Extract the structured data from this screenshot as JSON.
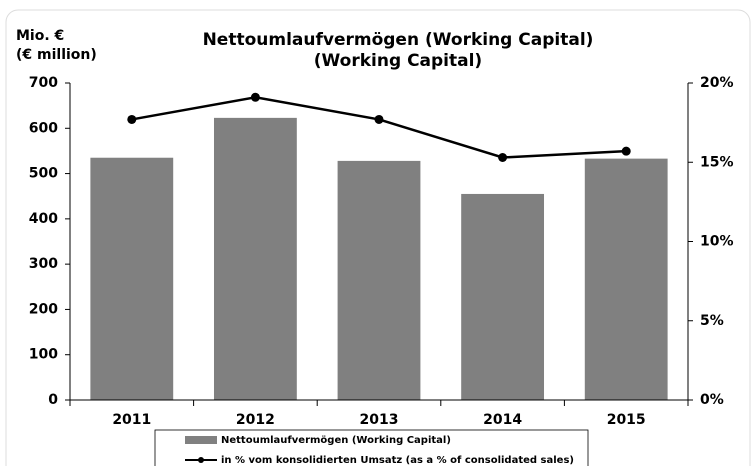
{
  "chart_data": {
    "type": "bar_line",
    "title": "Nettoumlaufvermögen (Working Capital)",
    "subtitle": "(Working Capital)",
    "ylabel": [
      "Mio. €",
      "(€ million)"
    ],
    "categories": [
      "2011",
      "2012",
      "2013",
      "2014",
      "2015"
    ],
    "series": [
      {
        "name": "Nettoumlaufvermögen (Working Capital)",
        "color": "#808080",
        "kind": "bar",
        "values": [
          535,
          623,
          528,
          455,
          533
        ]
      },
      {
        "name": "in % vom konsolidierten Umsatz (as a % of consolidated sales)",
        "color": "#000000",
        "kind": "line",
        "axis": "y2",
        "values": [
          17.7,
          19.1,
          17.7,
          15.3,
          15.7
        ]
      }
    ],
    "ylim": [
      0,
      700
    ],
    "yticks": [
      0,
      100,
      200,
      300,
      400,
      500,
      600,
      700
    ],
    "y2lim": [
      0,
      20
    ],
    "y2ticks": [
      {
        "value": 0,
        "label": "0%"
      },
      {
        "value": 5,
        "label": "5%"
      },
      {
        "value": 10,
        "label": "10%"
      },
      {
        "value": 15,
        "label": "15%"
      },
      {
        "value": 20,
        "label": "20%"
      }
    ],
    "legend": "bottom"
  }
}
